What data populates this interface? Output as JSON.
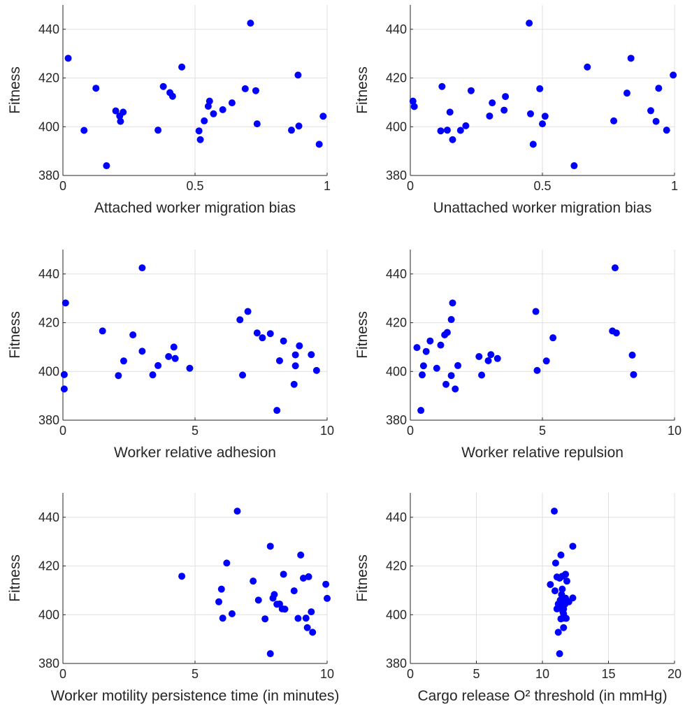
{
  "chart_data": [
    {
      "type": "scatter",
      "title": "",
      "xlabel": "Attached worker migration bias",
      "ylabel": "Fitness",
      "xlim": [
        0,
        1
      ],
      "ylim": [
        380,
        450
      ],
      "xticks": [
        0,
        0.5,
        1
      ],
      "xtick_labels": [
        "0",
        "0.5",
        "1"
      ],
      "yticks": [
        380,
        400,
        420,
        440
      ],
      "ytick_labels": [
        "380",
        "400",
        "420",
        "440"
      ],
      "grid": true,
      "color": "#0000ff",
      "points": [
        [
          0.02,
          428.1
        ],
        [
          0.08,
          398.5
        ],
        [
          0.125,
          415.8
        ],
        [
          0.165,
          384.0
        ],
        [
          0.2,
          406.5
        ],
        [
          0.215,
          404.4
        ],
        [
          0.218,
          402.2
        ],
        [
          0.228,
          406.0
        ],
        [
          0.36,
          398.6
        ],
        [
          0.38,
          416.5
        ],
        [
          0.405,
          414.0
        ],
        [
          0.415,
          412.5
        ],
        [
          0.45,
          424.5
        ],
        [
          0.515,
          398.3
        ],
        [
          0.52,
          394.7
        ],
        [
          0.535,
          402.4
        ],
        [
          0.55,
          408.4
        ],
        [
          0.555,
          410.5
        ],
        [
          0.57,
          405.3
        ],
        [
          0.605,
          407.0
        ],
        [
          0.64,
          409.8
        ],
        [
          0.69,
          415.6
        ],
        [
          0.71,
          442.5
        ],
        [
          0.73,
          414.8
        ],
        [
          0.735,
          401.2
        ],
        [
          0.865,
          398.6
        ],
        [
          0.89,
          421.2
        ],
        [
          0.893,
          400.3
        ],
        [
          0.97,
          392.8
        ],
        [
          0.985,
          404.3
        ]
      ]
    },
    {
      "type": "scatter",
      "title": "",
      "xlabel": "Unattached worker migration bias",
      "ylabel": "Fitness",
      "xlim": [
        0,
        1
      ],
      "ylim": [
        380,
        450
      ],
      "xticks": [
        0,
        0.5,
        1
      ],
      "xtick_labels": [
        "0",
        "0.5",
        "1"
      ],
      "yticks": [
        380,
        400,
        420,
        440
      ],
      "ytick_labels": [
        "380",
        "400",
        "420",
        "440"
      ],
      "grid": true,
      "color": "#0000ff",
      "points": [
        [
          0.01,
          410.5
        ],
        [
          0.015,
          408.3
        ],
        [
          0.115,
          398.3
        ],
        [
          0.12,
          416.5
        ],
        [
          0.14,
          398.6
        ],
        [
          0.15,
          406.0
        ],
        [
          0.16,
          394.7
        ],
        [
          0.19,
          398.5
        ],
        [
          0.21,
          400.4
        ],
        [
          0.23,
          414.8
        ],
        [
          0.3,
          404.4
        ],
        [
          0.31,
          409.8
        ],
        [
          0.355,
          406.8
        ],
        [
          0.36,
          412.4
        ],
        [
          0.45,
          442.5
        ],
        [
          0.455,
          405.3
        ],
        [
          0.465,
          392.8
        ],
        [
          0.49,
          415.6
        ],
        [
          0.5,
          401.2
        ],
        [
          0.51,
          404.3
        ],
        [
          0.62,
          384.0
        ],
        [
          0.67,
          424.5
        ],
        [
          0.77,
          402.4
        ],
        [
          0.82,
          413.8
        ],
        [
          0.835,
          428.1
        ],
        [
          0.91,
          406.6
        ],
        [
          0.93,
          402.2
        ],
        [
          0.94,
          415.8
        ],
        [
          0.97,
          398.6
        ],
        [
          0.995,
          421.2
        ]
      ]
    },
    {
      "type": "scatter",
      "title": "",
      "xlabel": "Worker relative adhesion",
      "ylabel": "Fitness",
      "xlim": [
        0,
        10
      ],
      "ylim": [
        380,
        450
      ],
      "xticks": [
        0,
        5,
        10
      ],
      "xtick_labels": [
        "0",
        "5",
        "10"
      ],
      "yticks": [
        380,
        400,
        420,
        440
      ],
      "ytick_labels": [
        "380",
        "400",
        "420",
        "440"
      ],
      "grid": true,
      "color": "#0000ff",
      "points": [
        [
          0.05,
          398.7
        ],
        [
          0.05,
          392.8
        ],
        [
          0.1,
          428.1
        ],
        [
          1.5,
          416.6
        ],
        [
          2.1,
          398.3
        ],
        [
          2.3,
          404.3
        ],
        [
          2.65,
          415.0
        ],
        [
          3.0,
          408.3
        ],
        [
          3.0,
          442.5
        ],
        [
          3.4,
          398.6
        ],
        [
          3.6,
          402.4
        ],
        [
          4.0,
          406.1
        ],
        [
          4.2,
          410.0
        ],
        [
          4.25,
          405.3
        ],
        [
          4.8,
          401.3
        ],
        [
          6.7,
          421.2
        ],
        [
          6.8,
          398.5
        ],
        [
          7.0,
          424.6
        ],
        [
          7.35,
          415.8
        ],
        [
          7.55,
          413.8
        ],
        [
          7.85,
          415.5
        ],
        [
          8.1,
          384.0
        ],
        [
          8.2,
          404.4
        ],
        [
          8.35,
          412.5
        ],
        [
          8.75,
          394.7
        ],
        [
          8.8,
          406.8
        ],
        [
          8.8,
          402.3
        ],
        [
          8.95,
          410.5
        ],
        [
          9.4,
          406.9
        ],
        [
          9.6,
          400.4
        ]
      ]
    },
    {
      "type": "scatter",
      "title": "",
      "xlabel": "Worker relative repulsion",
      "ylabel": "Fitness",
      "xlim": [
        0,
        10
      ],
      "ylim": [
        380,
        450
      ],
      "xticks": [
        0,
        5,
        10
      ],
      "xtick_labels": [
        "0",
        "5",
        "10"
      ],
      "yticks": [
        380,
        400,
        420,
        440
      ],
      "ytick_labels": [
        "380",
        "400",
        "420",
        "440"
      ],
      "grid": true,
      "color": "#0000ff",
      "points": [
        [
          0.25,
          409.8
        ],
        [
          0.4,
          384.0
        ],
        [
          0.45,
          398.6
        ],
        [
          0.5,
          402.3
        ],
        [
          0.6,
          408.2
        ],
        [
          0.75,
          412.5
        ],
        [
          1.0,
          401.3
        ],
        [
          1.15,
          410.8
        ],
        [
          1.3,
          415.0
        ],
        [
          1.35,
          394.7
        ],
        [
          1.4,
          416.0
        ],
        [
          1.55,
          398.3
        ],
        [
          1.55,
          421.3
        ],
        [
          1.6,
          428.1
        ],
        [
          1.7,
          392.8
        ],
        [
          1.8,
          402.4
        ],
        [
          2.6,
          406.1
        ],
        [
          2.7,
          398.5
        ],
        [
          2.95,
          404.4
        ],
        [
          3.05,
          406.9
        ],
        [
          3.3,
          405.3
        ],
        [
          4.75,
          424.6
        ],
        [
          4.8,
          400.4
        ],
        [
          5.15,
          404.3
        ],
        [
          5.4,
          413.8
        ],
        [
          7.65,
          416.6
        ],
        [
          7.75,
          442.5
        ],
        [
          7.8,
          415.8
        ],
        [
          8.4,
          406.7
        ],
        [
          8.45,
          398.7
        ]
      ]
    },
    {
      "type": "scatter",
      "title": "",
      "xlabel": "Worker motility persistence time (in minutes)",
      "ylabel": "Fitness",
      "xlim": [
        0,
        10
      ],
      "ylim": [
        380,
        450
      ],
      "xticks": [
        0,
        5,
        10
      ],
      "xtick_labels": [
        "0",
        "5",
        "10"
      ],
      "yticks": [
        380,
        400,
        420,
        440
      ],
      "ytick_labels": [
        "380",
        "400",
        "420",
        "440"
      ],
      "grid": true,
      "color": "#0000ff",
      "points": [
        [
          4.5,
          415.8
        ],
        [
          5.9,
          405.3
        ],
        [
          6.0,
          410.5
        ],
        [
          6.05,
          398.6
        ],
        [
          6.2,
          421.2
        ],
        [
          6.4,
          400.4
        ],
        [
          6.6,
          442.5
        ],
        [
          7.2,
          413.8
        ],
        [
          7.4,
          406.0
        ],
        [
          7.65,
          398.3
        ],
        [
          7.85,
          384.0
        ],
        [
          7.85,
          428.1
        ],
        [
          7.95,
          406.8
        ],
        [
          8.0,
          408.3
        ],
        [
          8.1,
          404.3
        ],
        [
          8.2,
          404.4
        ],
        [
          8.3,
          402.4
        ],
        [
          8.35,
          416.6
        ],
        [
          8.4,
          402.3
        ],
        [
          8.75,
          409.8
        ],
        [
          8.9,
          398.5
        ],
        [
          9.0,
          424.5
        ],
        [
          9.1,
          415.0
        ],
        [
          9.2,
          398.6
        ],
        [
          9.25,
          394.7
        ],
        [
          9.3,
          415.6
        ],
        [
          9.4,
          401.2
        ],
        [
          9.45,
          392.8
        ],
        [
          9.95,
          412.5
        ],
        [
          10.0,
          406.7
        ]
      ]
    },
    {
      "type": "scatter",
      "title": "",
      "xlabel": "Cargo release O² threshold (in mmHg)",
      "ylabel": "Fitness",
      "xlim": [
        0,
        20
      ],
      "ylim": [
        380,
        450
      ],
      "xticks": [
        0,
        5,
        10,
        15,
        20
      ],
      "xtick_labels": [
        "0",
        "5",
        "10",
        "15",
        "20"
      ],
      "yticks": [
        380,
        400,
        420,
        440
      ],
      "ytick_labels": [
        "380",
        "400",
        "420",
        "440"
      ],
      "grid": true,
      "color": "#0000ff",
      "points": [
        [
          10.6,
          412.4
        ],
        [
          10.9,
          442.5
        ],
        [
          10.95,
          409.8
        ],
        [
          11.0,
          421.2
        ],
        [
          11.1,
          402.4
        ],
        [
          11.2,
          404.4
        ],
        [
          11.2,
          392.8
        ],
        [
          11.3,
          415.0
        ],
        [
          11.3,
          384.0
        ],
        [
          11.35,
          406.0
        ],
        [
          11.4,
          398.3
        ],
        [
          11.4,
          424.5
        ],
        [
          11.45,
          408.3
        ],
        [
          11.5,
          410.5
        ],
        [
          11.5,
          415.8
        ],
        [
          11.55,
          401.2
        ],
        [
          11.6,
          402.3
        ],
        [
          11.6,
          400.4
        ],
        [
          11.6,
          394.7
        ],
        [
          11.65,
          398.6
        ],
        [
          11.7,
          404.3
        ],
        [
          11.75,
          406.8
        ],
        [
          11.75,
          416.6
        ],
        [
          11.8,
          398.5
        ],
        [
          11.85,
          413.8
        ],
        [
          12.0,
          405.3
        ],
        [
          12.3,
          428.1
        ],
        [
          12.3,
          406.9
        ],
        [
          11.1,
          415.5
        ],
        [
          11.4,
          403.0
        ]
      ]
    }
  ]
}
